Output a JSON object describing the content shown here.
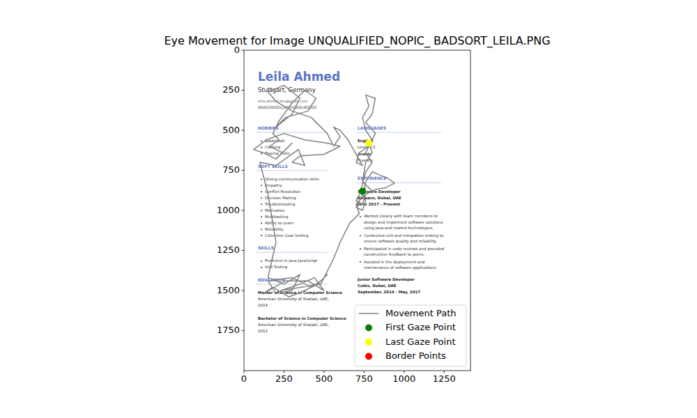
{
  "chart_data": {
    "type": "line",
    "title": "Eye Movement for Image UNQUALIFIED_NOPIC_ BADSORT_LEILA.PNG",
    "xlim": [
      0,
      1414
    ],
    "ylim": [
      2000,
      0
    ],
    "xticks": [
      0,
      250,
      500,
      750,
      1000,
      1250
    ],
    "yticks": [
      0,
      250,
      500,
      750,
      1000,
      1250,
      1500,
      1750
    ],
    "grid": false,
    "legend": "lower right",
    "series": [
      {
        "name": "Movement Path",
        "color": "gray",
        "type": "line",
        "x": [
          740,
          760,
          720,
          700,
          740,
          760,
          820,
          880,
          940,
          900,
          850,
          800,
          760,
          740,
          700,
          740,
          760,
          730,
          760,
          800,
          760,
          800,
          760,
          740,
          780,
          760,
          820,
          800,
          760,
          820,
          780,
          720,
          700,
          740,
          650,
          600,
          560,
          600,
          560,
          520,
          480,
          420,
          300,
          200,
          150,
          250,
          350,
          300,
          200,
          260,
          400,
          450,
          380,
          300,
          220,
          180,
          220,
          160,
          240,
          300,
          200,
          120,
          60,
          140,
          250,
          380,
          520,
          600,
          500,
          350,
          300,
          380,
          340,
          200,
          100,
          150,
          200,
          150,
          250,
          350,
          300,
          200,
          150,
          300,
          420,
          480,
          520,
          460,
          380,
          280,
          180,
          120,
          260,
          400,
          500,
          440,
          350,
          230,
          480,
          560,
          600,
          660,
          720,
          700,
          760,
          800,
          740,
          760,
          800,
          780
        ],
        "y": [
          880,
          860,
          900,
          940,
          960,
          900,
          870,
          860,
          830,
          800,
          780,
          760,
          820,
          900,
          980,
          1000,
          940,
          870,
          760,
          700,
          640,
          560,
          500,
          420,
          350,
          280,
          300,
          400,
          450,
          520,
          600,
          640,
          700,
          720,
          560,
          500,
          480,
          540,
          600,
          520,
          480,
          420,
          380,
          320,
          260,
          220,
          300,
          400,
          480,
          420,
          380,
          300,
          250,
          330,
          440,
          520,
          560,
          600,
          640,
          580,
          680,
          640,
          620,
          560,
          520,
          560,
          580,
          600,
          650,
          660,
          700,
          720,
          620,
          720,
          700,
          900,
          1200,
          1420,
          1460,
          1400,
          1500,
          1520,
          1440,
          1420,
          1480,
          1440,
          1400,
          1460,
          1500,
          1540,
          1480,
          1520,
          1440,
          1440,
          1500,
          1420,
          1460,
          1500,
          1460,
          1300,
          1200,
          1080,
          1020,
          960,
          900,
          880,
          820,
          700,
          640,
          580
        ]
      },
      {
        "name": "First Gaze Point",
        "color": "green",
        "type": "scatter",
        "marker": "circle",
        "x": [
          740
        ],
        "y": [
          880
        ]
      },
      {
        "name": "Last Gaze Point",
        "color": "yellow",
        "type": "scatter",
        "marker": "circle",
        "x": [
          780
        ],
        "y": [
          580
        ]
      },
      {
        "name": "Border Points",
        "color": "red",
        "type": "scatter",
        "marker": "circle",
        "x": [],
        "y": []
      }
    ]
  },
  "resume": {
    "name": "Leila Ahmed",
    "location": "Stuttgart, Germany",
    "email": "leila.ahmed.dev@gmail.com",
    "linkedin": "www.linkedin.com/in/leila-ahmed/",
    "left": [
      {
        "heading": "HOBBIES",
        "items": [
          "Basketball",
          "Cooking",
          "Playing violin"
        ]
      },
      {
        "heading": "SOFT SKILLS",
        "items": [
          "Strong communication skills",
          "Empathy",
          "Conflict Resolution",
          "Decision Making",
          "Troubleshooting",
          "Motivation",
          "Multitasking",
          "Ability to Learn",
          "Reliability",
          "Collective Goal Setting"
        ]
      },
      {
        "heading": "SKILLS",
        "items": [
          "Proficient in Java JavaScript",
          "Unit Testing"
        ]
      },
      {
        "heading": "EDUCATION",
        "entries": [
          {
            "lines": [
              "Master of Science in Computer Science",
              "American University of Sharjah, UAE,",
              "2014"
            ]
          },
          {
            "lines": [
              "Bachelor of Science in Computer Science",
              "American University of Sharjah, UAE,",
              "2012"
            ]
          }
        ]
      }
    ],
    "right": [
      {
        "heading": "LANGUAGES",
        "entries": [
          {
            "lines": [
              "English",
              "Level: C2"
            ]
          },
          {
            "lines": [
              "Arabic",
              "Fluently"
            ]
          }
        ]
      },
      {
        "heading": "EXPERIENCE",
        "entries": [
          {
            "lines": [
              "Software Developer",
              "Amazon, Dubai, UAE",
              "June 2017 - Present"
            ],
            "bullets": [
              [
                "Worked closely with team members to",
                "design and implement software solutions",
                "using Java and related technologies."
              ],
              [
                "Conducted unit and integration testing to",
                "ensure software quality and reliability."
              ],
              [
                "Participated in code reviews and provided",
                "constructive feedback to peers."
              ],
              [
                "Assisted in the deployment and",
                "maintenance of software applications."
              ]
            ]
          },
          {
            "lines": [
              "Junior Software Developer",
              "Cubix, Dubai, UAE",
              "September, 2014 - May, 2017"
            ]
          }
        ]
      }
    ]
  }
}
